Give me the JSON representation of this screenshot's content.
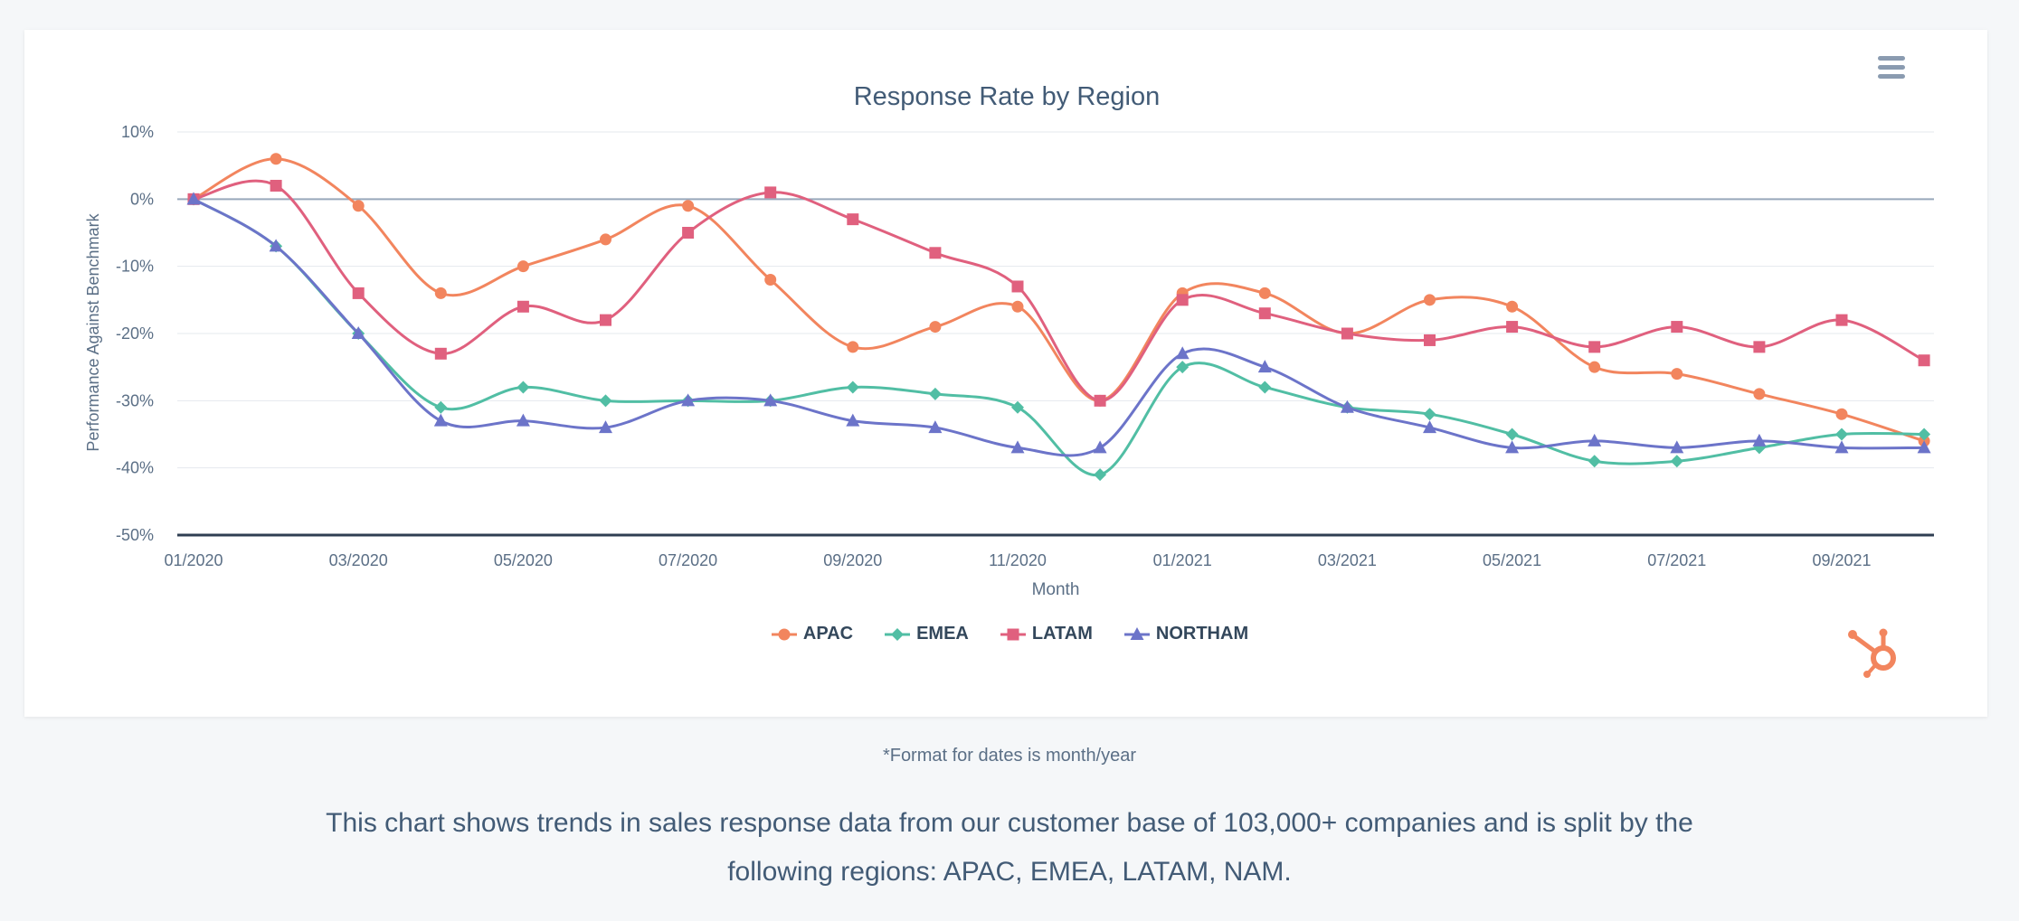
{
  "footnote": "*Format for dates is month/year",
  "caption": "This chart shows trends in sales response data from our customer base of 103,000+ companies and is split by the following regions: APAC, EMEA, LATAM, NAM.",
  "menu_icon": "hamburger-menu-icon",
  "logo_icon": "hubspot-sprocket-icon",
  "chart_data": {
    "type": "line",
    "title": "Response Rate by Region",
    "xlabel": "Month",
    "ylabel": "Performance Against Benchmark",
    "ylim": [
      -50,
      10
    ],
    "yticks": [
      "10%",
      "0%",
      "-10%",
      "-20%",
      "-30%",
      "-40%",
      "-50%"
    ],
    "ytick_values": [
      10,
      0,
      -10,
      -20,
      -30,
      -40,
      -50
    ],
    "xtick_labels": [
      "01/2020",
      "03/2020",
      "05/2020",
      "07/2020",
      "09/2020",
      "11/2020",
      "01/2021",
      "03/2021",
      "05/2021",
      "07/2021",
      "09/2021"
    ],
    "x": [
      "01/2020",
      "02/2020",
      "03/2020",
      "04/2020",
      "05/2020",
      "06/2020",
      "07/2020",
      "08/2020",
      "09/2020",
      "10/2020",
      "11/2020",
      "12/2020",
      "01/2021",
      "02/2021",
      "03/2021",
      "04/2021",
      "05/2021",
      "06/2021",
      "07/2021",
      "08/2021",
      "09/2021",
      "10/2021"
    ],
    "legend_position": "bottom-center",
    "grid": true,
    "series": [
      {
        "name": "APAC",
        "color": "#f2855e",
        "marker": "circle",
        "values": [
          0,
          6,
          -1,
          -14,
          -10,
          -6,
          -1,
          -12,
          -22,
          -19,
          -16,
          -30,
          -14,
          -14,
          -20,
          -15,
          -16,
          -25,
          -26,
          -29,
          -32,
          -36
        ]
      },
      {
        "name": "EMEA",
        "color": "#51bea4",
        "marker": "diamond",
        "values": [
          0,
          -7,
          -20,
          -31,
          -28,
          -30,
          -30,
          -30,
          -28,
          -29,
          -31,
          -41,
          -25,
          -28,
          -31,
          -32,
          -35,
          -39,
          -39,
          -37,
          -35,
          -35
        ]
      },
      {
        "name": "LATAM",
        "color": "#e0607e",
        "marker": "square",
        "values": [
          0,
          2,
          -14,
          -23,
          -16,
          -18,
          -5,
          1,
          -3,
          -8,
          -13,
          -30,
          -15,
          -17,
          -20,
          -21,
          -19,
          -22,
          -19,
          -22,
          -18,
          -24
        ]
      },
      {
        "name": "NORTHAM",
        "color": "#6c74c9",
        "marker": "triangle",
        "values": [
          0,
          -7,
          -20,
          -33,
          -33,
          -34,
          -30,
          -30,
          -33,
          -34,
          -37,
          -37,
          -23,
          -25,
          -31,
          -34,
          -37,
          -36,
          -37,
          -36,
          -37,
          -37
        ]
      }
    ]
  }
}
